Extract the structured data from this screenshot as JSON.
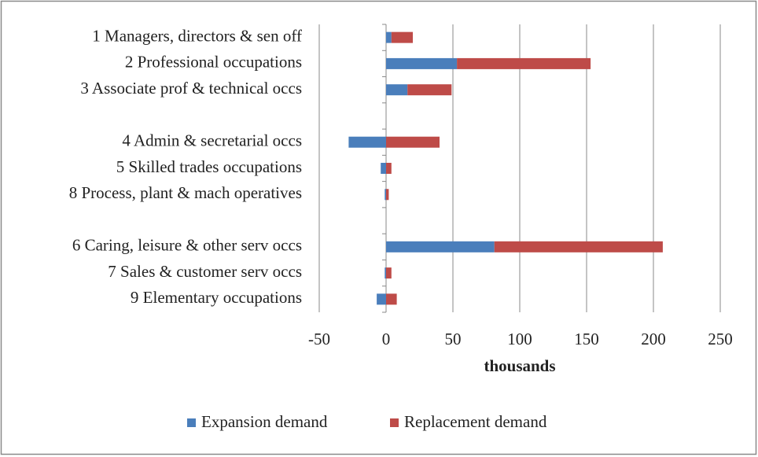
{
  "chart_data": {
    "type": "bar",
    "orientation": "horizontal",
    "stacked": true,
    "categories": [
      "1 Managers, directors & sen off",
      "2 Professional occupations",
      "3 Associate prof & technical occs",
      null,
      "4 Admin & secretarial occs",
      "5 Skilled trades occupations",
      "8 Process, plant & mach operatives",
      null,
      "6 Caring, leisure & other serv occs",
      "7 Sales & customer serv occs",
      "9 Elementary occupations"
    ],
    "series": [
      {
        "name": "Expansion demand",
        "color": "#4a7ebb",
        "values": [
          4,
          53,
          16,
          null,
          -28,
          -4,
          -1,
          null,
          81,
          -1,
          -7
        ]
      },
      {
        "name": "Replacement demand",
        "color": "#be4b48",
        "values": [
          16,
          100,
          33,
          null,
          40,
          4,
          2,
          null,
          126,
          4,
          8
        ]
      }
    ],
    "xlabel": "thousands",
    "xlim": [
      -50,
      250
    ],
    "xticks": [
      -50,
      0,
      50,
      100,
      150,
      200,
      250
    ],
    "grid": true,
    "legend": "bottom"
  }
}
